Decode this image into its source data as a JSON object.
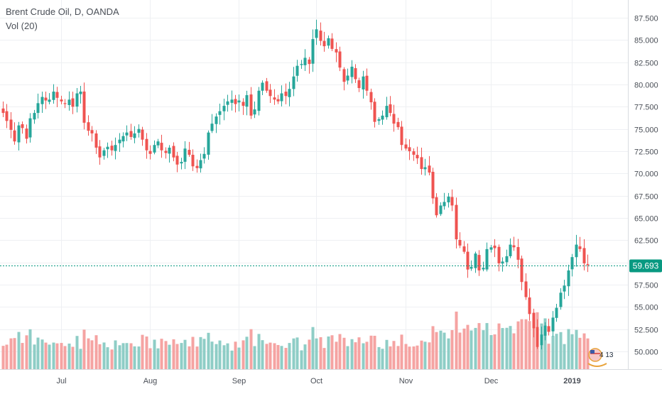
{
  "header": {
    "title": "Brent Crude Oil, D, OANDA",
    "volume_label": "Vol (20)"
  },
  "last_price": {
    "value": 59.693,
    "label": "59.693"
  },
  "badge": {
    "text": "4 13"
  },
  "colors": {
    "up": "#26a69a",
    "down": "#ef5350",
    "vol_up": "#8ecdc6",
    "vol_down": "#f5a3a2",
    "grid": "#eef0f3",
    "axis_text": "#4a4f57",
    "last_price_line": "#089981"
  },
  "chart_data": {
    "type": "candlestick",
    "title": "Brent Crude Oil, D, OANDA",
    "y_axis": {
      "range": [
        48,
        88
      ],
      "ticks": [
        50.0,
        52.5,
        55.0,
        57.5,
        60.0,
        62.5,
        65.0,
        67.5,
        70.0,
        72.5,
        75.0,
        77.5,
        80.0,
        82.5,
        85.0,
        87.5
      ],
      "tick_labels": [
        "50.000",
        "52.500",
        "55.000",
        "57.500",
        "60.000",
        "62.500",
        "65.000",
        "67.500",
        "70.000",
        "72.500",
        "75.000",
        "77.500",
        "80.000",
        "82.500",
        "85.000",
        "87.500"
      ],
      "position": "right"
    },
    "x_axis": {
      "labels": [
        {
          "text": "Jul",
          "bar_index": 15,
          "bold": false
        },
        {
          "text": "Aug",
          "bar_index": 38,
          "bold": false
        },
        {
          "text": "Sep",
          "bar_index": 61,
          "bold": false
        },
        {
          "text": "Oct",
          "bar_index": 81,
          "bold": false
        },
        {
          "text": "Nov",
          "bar_index": 104,
          "bold": false
        },
        {
          "text": "Dec",
          "bar_index": 126,
          "bold": false
        },
        {
          "text": "2019",
          "bar_index": 147,
          "bold": true
        }
      ]
    },
    "grid": true,
    "close_series": [
      76.8,
      75.9,
      74.9,
      73.6,
      75.4,
      75.1,
      73.9,
      76.2,
      76.8,
      77.9,
      78.6,
      78.2,
      78.3,
      79.2,
      78.5,
      78.1,
      77.8,
      78.3,
      77.5,
      79.0,
      79.2,
      75.7,
      74.8,
      74.5,
      72.9,
      71.8,
      72.6,
      73.0,
      72.6,
      73.2,
      73.8,
      74.2,
      74.6,
      74.1,
      74.5,
      75.0,
      73.8,
      72.6,
      72.2,
      73.2,
      73.6,
      72.6,
      72.3,
      72.9,
      71.8,
      71.0,
      71.3,
      72.8,
      72.1,
      70.8,
      70.6,
      71.5,
      72.2,
      74.6,
      75.6,
      76.4,
      77.0,
      77.6,
      78.1,
      78.3,
      77.8,
      78.2,
      77.6,
      78.8,
      76.5,
      77.2,
      79.3,
      80.2,
      79.3,
      78.7,
      78.3,
      78.1,
      79.0,
      78.7,
      79.5,
      80.9,
      82.1,
      82.3,
      83.0,
      82.3,
      85.1,
      86.2,
      84.9,
      84.3,
      85.2,
      84.0,
      83.6,
      81.9,
      80.3,
      81.0,
      82.0,
      80.6,
      79.6,
      80.9,
      79.3,
      78.0,
      75.8,
      76.1,
      76.5,
      77.6,
      76.8,
      75.6,
      75.2,
      73.2,
      72.8,
      72.5,
      72.1,
      71.7,
      70.5,
      70.7,
      70.1,
      67.2,
      65.3,
      66.4,
      66.8,
      67.4,
      66.4,
      62.6,
      61.9,
      61.2,
      59.2,
      59.5,
      61.0,
      59.1,
      59.4,
      61.5,
      61.7,
      61.6,
      59.9,
      60.1,
      60.7,
      62.0,
      61.7,
      60.3,
      57.8,
      56.1,
      54.2,
      52.6,
      50.5,
      51.9,
      52.9,
      52.2,
      53.8,
      54.9,
      56.6,
      57.4,
      59.1,
      60.6,
      62.0,
      61.5,
      59.9,
      59.7
    ]
  }
}
